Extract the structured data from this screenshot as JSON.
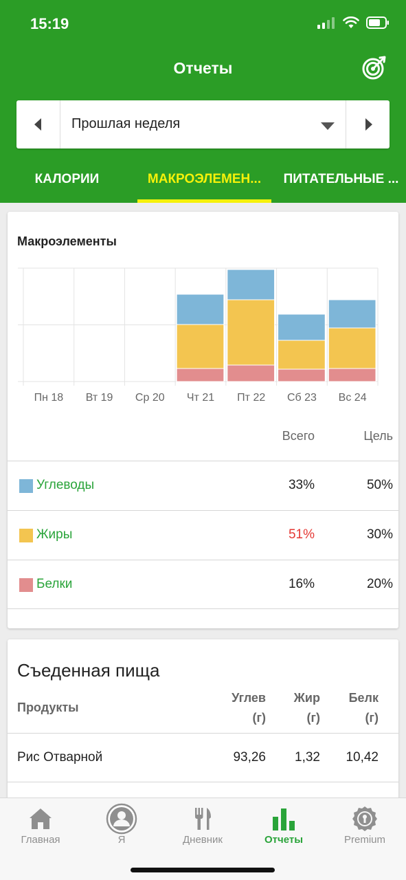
{
  "status_bar": {
    "time": "15:19"
  },
  "header": {
    "title": "Отчеты"
  },
  "week_selector": {
    "label": "Прошлая неделя"
  },
  "tabs": [
    {
      "label": "КАЛОРИИ",
      "active": false
    },
    {
      "label": "МАКРОЭЛЕМЕН...",
      "active": true
    },
    {
      "label": "ПИТАТЕЛЬНЫЕ ...",
      "active": false
    }
  ],
  "macros_card": {
    "title": "Макроэлементы",
    "col_total": "Всего",
    "col_goal": "Цель",
    "rows": [
      {
        "name": "Углеводы",
        "total": "33%",
        "goal": "50%",
        "color": "#7eb6d8",
        "over": false
      },
      {
        "name": "Жиры",
        "total": "51%",
        "goal": "30%",
        "color": "#f3c550",
        "over": true
      },
      {
        "name": "Белки",
        "total": "16%",
        "goal": "20%",
        "color": "#e28d8e",
        "over": false
      }
    ]
  },
  "chart_data": {
    "type": "bar",
    "stacked": true,
    "title": "Макроэлементы",
    "categories": [
      "Пн 18",
      "Вт 19",
      "Ср 20",
      "Чт 21",
      "Пт 22",
      "Сб 23",
      "Вс 24"
    ],
    "series": [
      {
        "name": "Белки",
        "color": "#e28d8e",
        "values": [
          0,
          0,
          0,
          19,
          24,
          18,
          19
        ]
      },
      {
        "name": "Жиры",
        "color": "#f3c550",
        "values": [
          0,
          0,
          0,
          64,
          95,
          42,
          59
        ]
      },
      {
        "name": "Углеводы",
        "color": "#7eb6d8",
        "values": [
          0,
          0,
          0,
          44,
          44,
          38,
          41
        ]
      }
    ],
    "ylim": [
      0,
      165
    ],
    "grid": true,
    "legend": "none"
  },
  "eaten_card": {
    "title": "Съеденная пища",
    "headers": {
      "product": "Продукты",
      "carbs": "Углев",
      "carbs_unit": "(г)",
      "fat": "Жир",
      "fat_unit": "(г)",
      "protein": "Белк",
      "protein_unit": "(г)"
    },
    "items": [
      {
        "name": "Рис Отварной",
        "carbs": "93,26",
        "fat": "1,32",
        "protein": "10,42"
      }
    ]
  },
  "bottom_nav": [
    {
      "label": "Главная",
      "icon": "home-icon",
      "active": false
    },
    {
      "label": "Я",
      "icon": "avatar-icon",
      "active": false
    },
    {
      "label": "Дневник",
      "icon": "fork-knife-icon",
      "active": false
    },
    {
      "label": "Отчеты",
      "icon": "bar-chart-icon",
      "active": true
    },
    {
      "label": "Premium",
      "icon": "premium-badge-icon",
      "active": false
    }
  ],
  "colors": {
    "brand": "#2b9d26",
    "accent": "#f5f10a",
    "link_green": "#2aa43a",
    "warning": "#e53935"
  }
}
